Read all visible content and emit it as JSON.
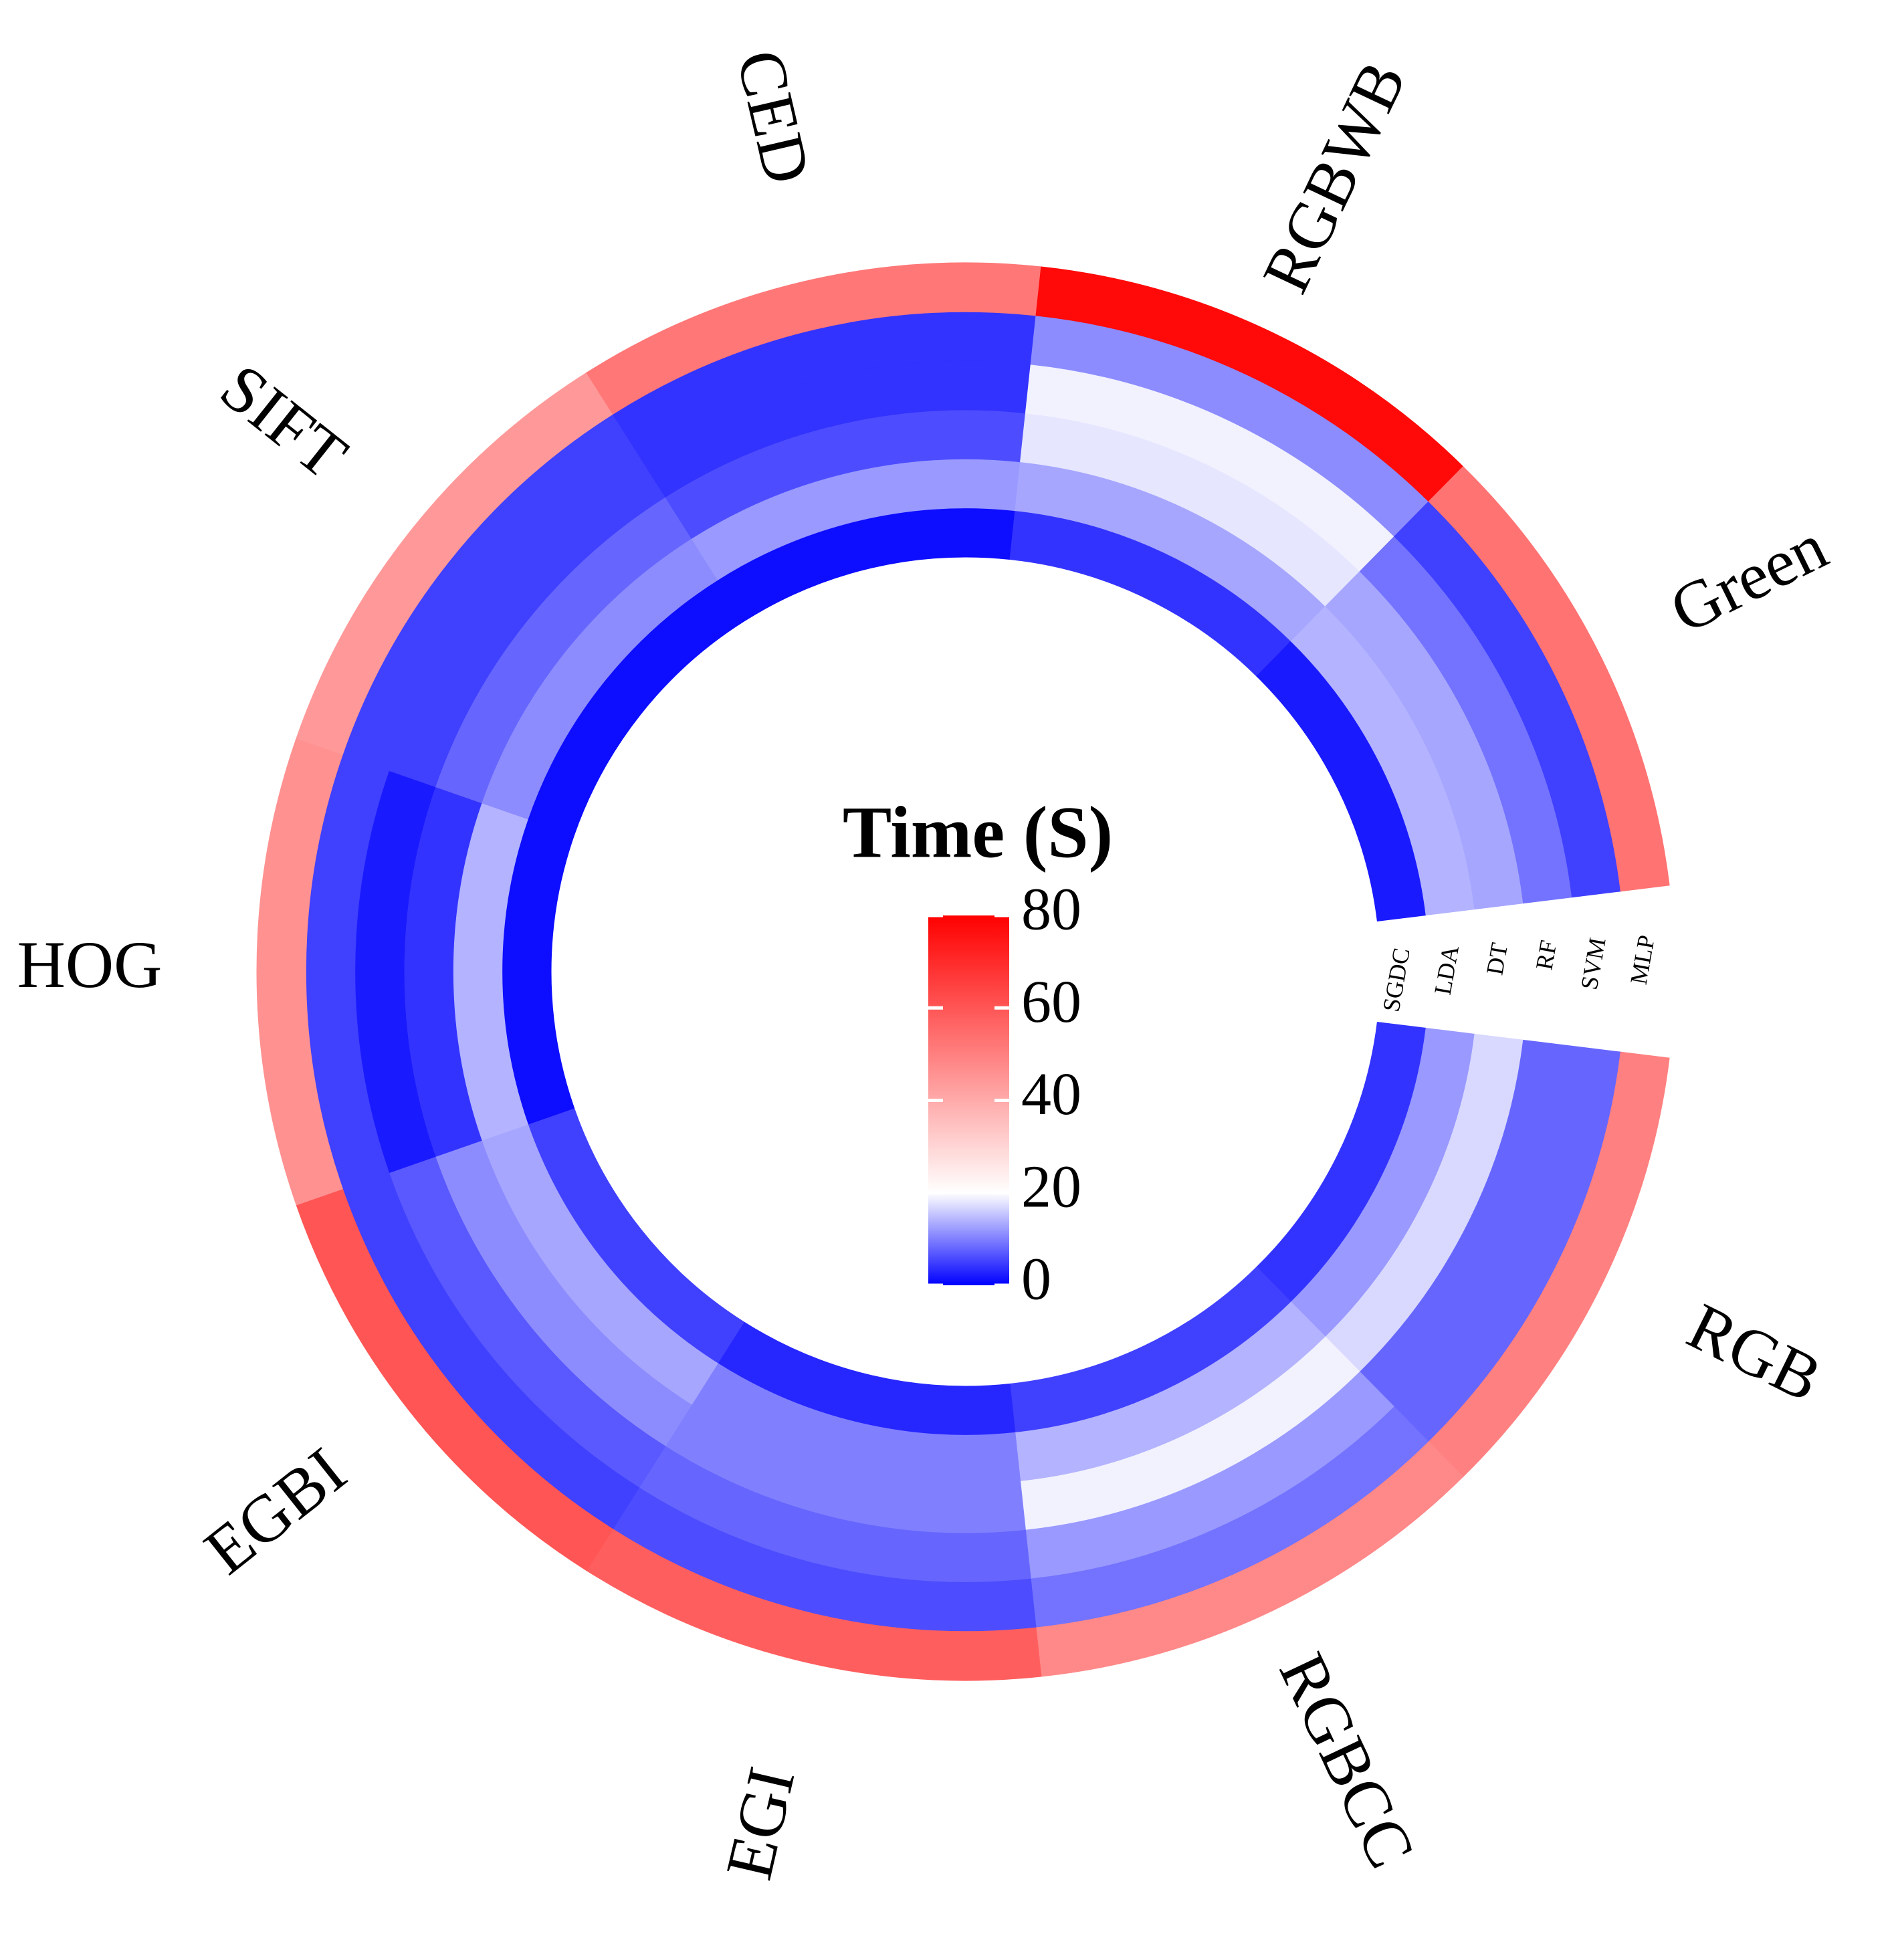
{
  "chart_data": {
    "type": "radial_heatmap",
    "title": "Time (S)",
    "categories": [
      "RGB",
      "RGBCC",
      "EGI",
      "EGBI",
      "HOG",
      "SIFT",
      "CED",
      "RGBWB",
      "Green"
    ],
    "series": [
      {
        "name": "SGDC",
        "values": [
          4,
          5,
          3,
          5,
          1,
          1,
          1,
          4,
          2
        ]
      },
      {
        "name": "LDA",
        "values": [
          12,
          14,
          10,
          13,
          14,
          11,
          12,
          13,
          14
        ]
      },
      {
        "name": "DT",
        "values": [
          17,
          19,
          10,
          11,
          4,
          8,
          6,
          18,
          13
        ]
      },
      {
        "name": "RF",
        "values": [
          8,
          12,
          8,
          7,
          2,
          5,
          4,
          19,
          9
        ]
      },
      {
        "name": "SVM",
        "values": [
          8,
          9,
          6,
          5,
          5,
          5,
          4,
          11,
          5
        ]
      },
      {
        "name": "MLP",
        "values": [
          50,
          48,
          58,
          60,
          46,
          44,
          52,
          78,
          53
        ]
      }
    ],
    "colorscale": [
      {
        "value": 0,
        "color": "#0000ff"
      },
      {
        "value": 20,
        "color": "#ffffff"
      },
      {
        "value": 80,
        "color": "#ff0000"
      }
    ],
    "clim": [
      0,
      80
    ],
    "cticks": [
      0,
      20,
      40,
      60,
      80
    ]
  }
}
